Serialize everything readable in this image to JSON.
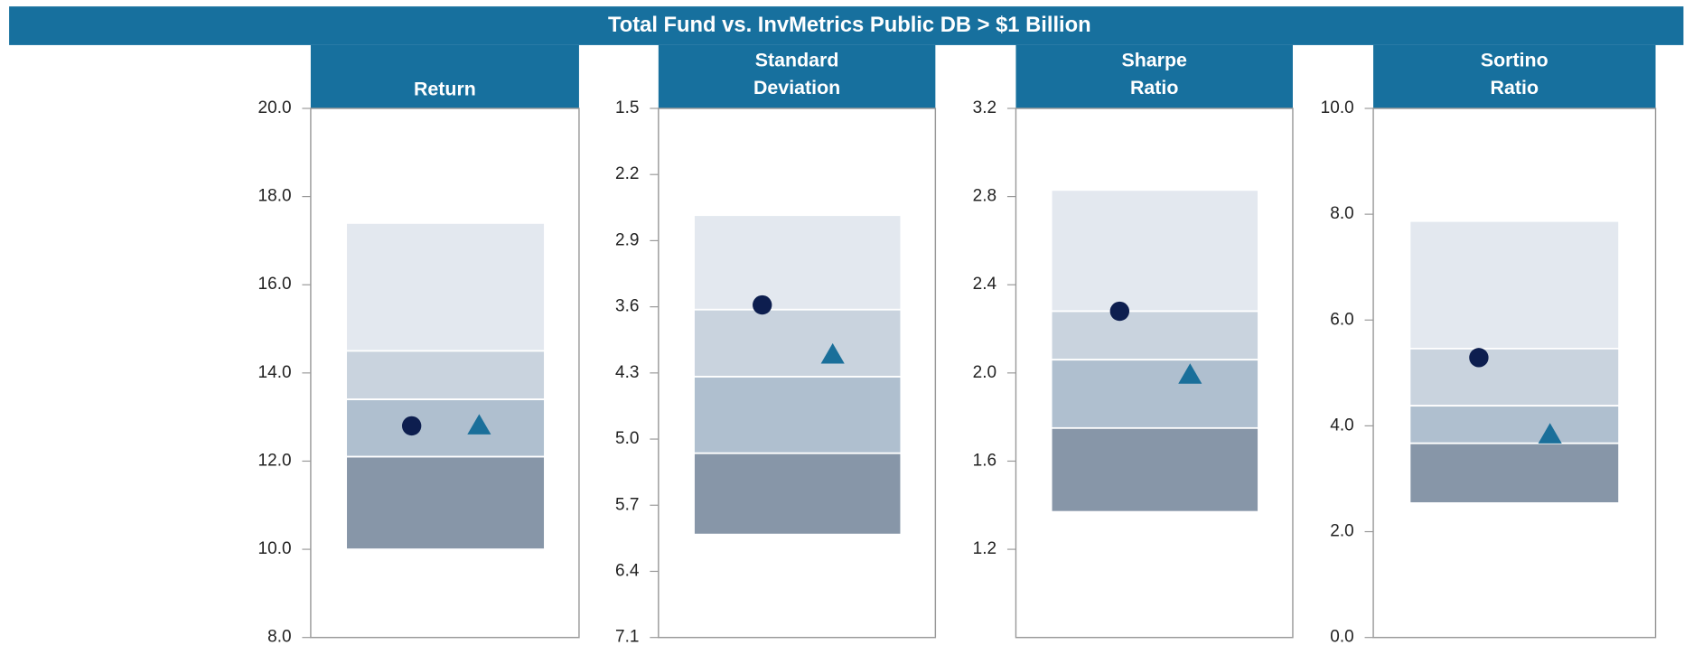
{
  "title": "Total Fund vs. InvMetrics Public DB > $1 Billion",
  "chart_data": [
    {
      "type": "range_bar",
      "title_lines": [
        "Return"
      ],
      "ylim": [
        8,
        20
      ],
      "inverted": false,
      "yticks": [
        {
          "value": 20,
          "label": "20.0"
        },
        {
          "value": 18,
          "label": "18.0"
        },
        {
          "value": 16,
          "label": "16.0"
        },
        {
          "value": 14,
          "label": "14.0"
        },
        {
          "value": 12,
          "label": "12.0"
        },
        {
          "value": 10,
          "label": "10.0"
        },
        {
          "value": 8,
          "label": "8.0"
        }
      ],
      "bands": [
        17.4,
        14.5,
        13.4,
        12.1,
        10.0
      ],
      "band_colors": [
        "#e3e8ef",
        "#c9d3de",
        "#afbfcf",
        "#8796a8"
      ],
      "markers": [
        {
          "shape": "circle",
          "color": "#0d1e4f",
          "value": 12.8
        },
        {
          "shape": "triangle",
          "color": "#1a6f9a",
          "value": 12.8
        }
      ]
    },
    {
      "type": "range_bar",
      "title_lines": [
        "Standard",
        "Deviation"
      ],
      "ylim": [
        1.5,
        7.1
      ],
      "inverted": true,
      "yticks": [
        1.5,
        2.2,
        2.9,
        3.6,
        4.3,
        {
          "value": 5,
          "label": "5.0"
        },
        5.7,
        6.4,
        7.1
      ],
      "bands": [
        2.63,
        3.63,
        4.34,
        5.15,
        6.01
      ],
      "band_colors": [
        "#e3e8ef",
        "#c9d3de",
        "#afbfcf",
        "#8796a8"
      ],
      "markers": [
        {
          "shape": "circle",
          "color": "#0d1e4f",
          "value": 3.58
        },
        {
          "shape": "triangle",
          "color": "#1a6f9a",
          "value": 4.11
        }
      ]
    },
    {
      "type": "range_bar",
      "title_lines": [
        "Sharpe",
        "Ratio"
      ],
      "ylim": [
        0.8,
        3.2
      ],
      "inverted": false,
      "yticks": [
        3.2,
        2.8,
        2.4,
        {
          "value": 2,
          "label": "2.0"
        },
        1.6,
        1.2
      ],
      "bands": [
        2.83,
        2.28,
        2.06,
        1.75,
        1.37
      ],
      "band_colors": [
        "#e3e8ef",
        "#c9d3de",
        "#afbfcf",
        "#8796a8"
      ],
      "markers": [
        {
          "shape": "circle",
          "color": "#0d1e4f",
          "value": 2.28
        },
        {
          "shape": "triangle",
          "color": "#1a6f9a",
          "value": 1.99
        }
      ]
    },
    {
      "type": "range_bar",
      "title_lines": [
        "Sortino",
        "Ratio"
      ],
      "ylim": [
        0,
        10
      ],
      "inverted": false,
      "yticks": [
        {
          "value": 10,
          "label": "10.0"
        },
        {
          "value": 8,
          "label": "8.0"
        },
        {
          "value": 6,
          "label": "6.0"
        },
        {
          "value": 4,
          "label": "4.0"
        },
        {
          "value": 2,
          "label": "2.0"
        },
        {
          "value": 0,
          "label": "0.0"
        }
      ],
      "bands": [
        7.87,
        5.46,
        4.38,
        3.67,
        2.54
      ],
      "band_colors": [
        "#e3e8ef",
        "#c9d3de",
        "#afbfcf",
        "#8796a8"
      ],
      "markers": [
        {
          "shape": "circle",
          "color": "#0d1e4f",
          "value": 5.29
        },
        {
          "shape": "triangle",
          "color": "#1a6f9a",
          "value": 3.83
        }
      ]
    }
  ]
}
